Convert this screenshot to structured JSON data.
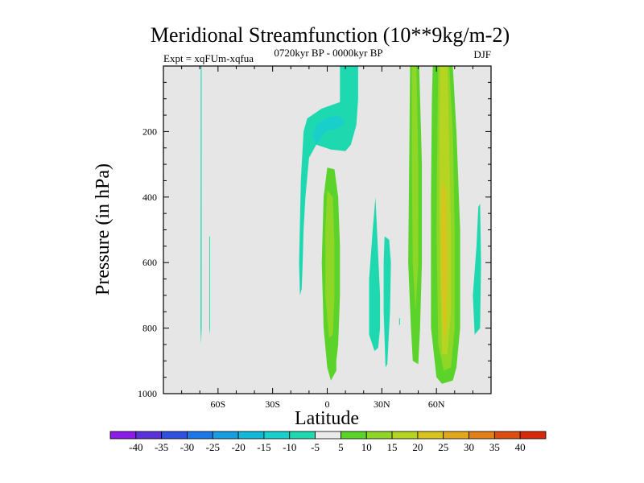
{
  "chart_data": {
    "type": "contour",
    "title": "Meridional Streamfunction (10**9kg/m-2)",
    "subtitle_left": "Expt = xqFUm-xqfua",
    "subtitle_center": "0720kyr BP - 0000kyr BP",
    "subtitle_right": "DJF",
    "xlabel": "Latitude",
    "ylabel": "Pressure (in hPa)",
    "xlim": [
      -90,
      90
    ],
    "ylim": [
      1000,
      0
    ],
    "xticks": [
      {
        "value": -60,
        "label": "60S"
      },
      {
        "value": -30,
        "label": "30S"
      },
      {
        "value": 0,
        "label": "0"
      },
      {
        "value": 30,
        "label": "30N"
      },
      {
        "value": 60,
        "label": "60N"
      }
    ],
    "yticks": [
      {
        "value": 200,
        "label": "200"
      },
      {
        "value": 400,
        "label": "400"
      },
      {
        "value": 600,
        "label": "600"
      },
      {
        "value": 800,
        "label": "800"
      },
      {
        "value": 1000,
        "label": "1000"
      }
    ],
    "background_color": "#e6e6e6",
    "colorbar": {
      "labels": [
        "-40",
        "-35",
        "-30",
        "-25",
        "-20",
        "-15",
        "-10",
        "-5",
        "5",
        "10",
        "15",
        "20",
        "25",
        "30",
        "35",
        "40"
      ],
      "colors": [
        "#8b1ce6",
        "#5a32d9",
        "#2f50e0",
        "#1a78e8",
        "#159ee2",
        "#11b8d8",
        "#18cfcb",
        "#1ed9b0",
        "#eaeaea",
        "#5cd32a",
        "#8fd626",
        "#b6d422",
        "#d9c41d",
        "#e3a81a",
        "#e27f16",
        "#dd4d10",
        "#d72a0a"
      ]
    },
    "regions": [
      {
        "level": -5,
        "color": "#1ed9b0",
        "points": [
          [
            -69.5,
            0
          ],
          [
            -69,
            0
          ],
          [
            -69,
            800
          ],
          [
            -69.3,
            850
          ],
          [
            -69.6,
            800
          ]
        ]
      },
      {
        "level": -5,
        "color": "#1ed9b0",
        "points": [
          [
            -64.8,
            520
          ],
          [
            -64.4,
            520
          ],
          [
            -64.4,
            820
          ],
          [
            -64.8,
            800
          ]
        ]
      },
      {
        "level": -5,
        "color": "#1ed9b0",
        "points": [
          [
            7,
            0
          ],
          [
            17,
            0
          ],
          [
            17,
            100
          ],
          [
            16,
            180
          ],
          [
            13,
            240
          ],
          [
            10,
            260
          ],
          [
            2,
            255
          ],
          [
            -6,
            240
          ],
          [
            -10,
            280
          ],
          [
            -12,
            400
          ],
          [
            -13,
            500
          ],
          [
            -13.5,
            600
          ],
          [
            -14,
            680
          ],
          [
            -15,
            700
          ],
          [
            -15.5,
            600
          ],
          [
            -15,
            480
          ],
          [
            -14.5,
            350
          ],
          [
            -13,
            200
          ],
          [
            -11,
            160
          ],
          [
            -3,
            130
          ],
          [
            7,
            110
          ]
        ]
      },
      {
        "level": -10,
        "color": "#18cfcb",
        "points": [
          [
            -6,
            180
          ],
          [
            -1,
            160
          ],
          [
            6,
            150
          ],
          [
            10,
            170
          ],
          [
            6,
            190
          ],
          [
            -1,
            200
          ],
          [
            -6,
            240
          ],
          [
            -8,
            210
          ]
        ]
      },
      {
        "level": -5,
        "color": "#1ed9b0",
        "points": [
          [
            25,
            500
          ],
          [
            26.5,
            400
          ],
          [
            27.5,
            520
          ],
          [
            29,
            700
          ],
          [
            29,
            800
          ],
          [
            28,
            860
          ],
          [
            26,
            870
          ],
          [
            23,
            820
          ],
          [
            23,
            650
          ]
        ]
      },
      {
        "level": -5,
        "color": "#1ed9b0",
        "points": [
          [
            31.5,
            520
          ],
          [
            34,
            530
          ],
          [
            35,
            600
          ],
          [
            34.5,
            750
          ],
          [
            33,
            910
          ],
          [
            32,
            920
          ],
          [
            31,
            750
          ],
          [
            31,
            600
          ]
        ]
      },
      {
        "level": -5,
        "color": "#1ed9b0",
        "points": [
          [
            39.5,
            770
          ],
          [
            40,
            770
          ],
          [
            40,
            790
          ],
          [
            39.5,
            790
          ]
        ]
      },
      {
        "level": 5,
        "color": "#5cd32a",
        "points": [
          [
            45.5,
            0
          ],
          [
            50.5,
            0
          ],
          [
            52,
            300
          ],
          [
            52,
            600
          ],
          [
            51,
            800
          ],
          [
            50,
            910
          ],
          [
            47,
            900
          ],
          [
            46,
            800
          ],
          [
            44.5,
            600
          ],
          [
            45,
            300
          ]
        ]
      },
      {
        "level": 10,
        "color": "#8fd626",
        "points": [
          [
            46.5,
            0
          ],
          [
            49,
            0
          ],
          [
            50,
            300
          ],
          [
            50,
            600
          ],
          [
            48.5,
            750
          ],
          [
            47,
            600
          ],
          [
            46.5,
            300
          ]
        ]
      },
      {
        "level": 5,
        "color": "#5cd32a",
        "points": [
          [
            0,
            310
          ],
          [
            4,
            315
          ],
          [
            6,
            400
          ],
          [
            7,
            550
          ],
          [
            7,
            700
          ],
          [
            6,
            850
          ],
          [
            5,
            900
          ],
          [
            5,
            930
          ],
          [
            2,
            960
          ],
          [
            0,
            920
          ],
          [
            -2,
            800
          ],
          [
            -3,
            600
          ],
          [
            -2,
            400
          ]
        ]
      },
      {
        "level": 10,
        "color": "#8fd626",
        "points": [
          [
            0,
            380
          ],
          [
            3,
            400
          ],
          [
            4,
            550
          ],
          [
            4,
            700
          ],
          [
            3,
            820
          ],
          [
            1,
            830
          ],
          [
            -1,
            700
          ],
          [
            -1,
            500
          ]
        ]
      },
      {
        "level": 5,
        "color": "#5cd32a",
        "points": [
          [
            58,
            0
          ],
          [
            69,
            0
          ],
          [
            71,
            200
          ],
          [
            73,
            500
          ],
          [
            73,
            800
          ],
          [
            71,
            920
          ],
          [
            69,
            960
          ],
          [
            63,
            970
          ],
          [
            60,
            950
          ],
          [
            57,
            800
          ],
          [
            57,
            400
          ],
          [
            57.5,
            100
          ]
        ]
      },
      {
        "level": 10,
        "color": "#8fd626",
        "points": [
          [
            61,
            0
          ],
          [
            67,
            0
          ],
          [
            69,
            200
          ],
          [
            70,
            500
          ],
          [
            70,
            800
          ],
          [
            68,
            920
          ],
          [
            64,
            930
          ],
          [
            61,
            850
          ],
          [
            60,
            500
          ],
          [
            60.5,
            200
          ]
        ]
      },
      {
        "level": 15,
        "color": "#b6d422",
        "points": [
          [
            62,
            0
          ],
          [
            66,
            0
          ],
          [
            67,
            250
          ],
          [
            68,
            500
          ],
          [
            68,
            750
          ],
          [
            66,
            880
          ],
          [
            63,
            880
          ],
          [
            62,
            600
          ],
          [
            61.5,
            300
          ]
        ]
      },
      {
        "level": 20,
        "color": "#d9c41d",
        "points": [
          [
            63,
            350
          ],
          [
            65,
            380
          ],
          [
            66,
            600
          ],
          [
            65.5,
            800
          ],
          [
            64,
            830
          ],
          [
            63,
            700
          ],
          [
            62.5,
            500
          ]
        ]
      },
      {
        "level": -5,
        "color": "#1ed9b0",
        "points": [
          [
            83,
            430
          ],
          [
            84,
            420
          ],
          [
            84.5,
            600
          ],
          [
            84,
            800
          ],
          [
            81,
            820
          ],
          [
            80,
            700
          ],
          [
            82,
            550
          ]
        ]
      }
    ]
  }
}
